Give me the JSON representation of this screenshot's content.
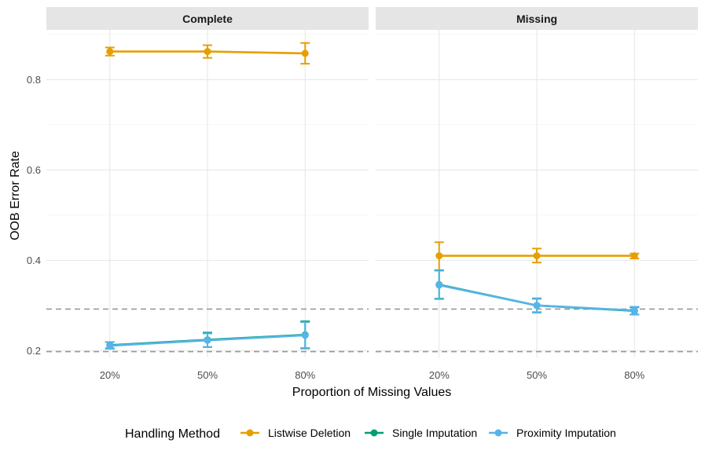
{
  "chart_data": {
    "type": "line",
    "ylabel": "OOB Error Rate",
    "xlabel": "Proportion of Missing Values",
    "categories": [
      "20%",
      "50%",
      "80%"
    ],
    "ylim": [
      0.185,
      0.91
    ],
    "yticks": [
      0.2,
      0.4,
      0.6,
      0.8
    ],
    "ytick_labels": [
      "0.2",
      "0.4",
      "0.6",
      "0.8"
    ],
    "reference_lines": [
      0.198,
      0.292
    ],
    "grid": true,
    "legend_position": "bottom",
    "legend_title": "Handling Method",
    "panels": [
      {
        "title": "Complete",
        "series": [
          {
            "name": "Listwise Deletion",
            "color": "#E69F00",
            "values": [
              0.862,
              0.862,
              0.858
            ],
            "lower": [
              0.853,
              0.848,
              0.835
            ],
            "upper": [
              0.871,
              0.876,
              0.881
            ]
          },
          {
            "name": "Single Imputation",
            "color": "#009E73",
            "values": [
              0.212,
              0.224,
              0.235
            ],
            "lower": [
              0.205,
              0.208,
              0.205
            ],
            "upper": [
              0.219,
              0.24,
              0.265
            ]
          },
          {
            "name": "Proximity Imputation",
            "color": "#56B4E9",
            "values": [
              0.211,
              0.223,
              0.234
            ],
            "lower": [
              0.204,
              0.208,
              0.206
            ],
            "upper": [
              0.219,
              0.238,
              0.263
            ]
          }
        ]
      },
      {
        "title": "Missing",
        "series": [
          {
            "name": "Listwise Deletion",
            "color": "#E69F00",
            "values": [
              0.41,
              0.41,
              0.41
            ],
            "lower": [
              0.378,
              0.395,
              0.404
            ],
            "upper": [
              0.44,
              0.426,
              0.415
            ]
          },
          {
            "name": "Single Imputation",
            "color": "#009E73",
            "values": [
              0.346,
              0.3,
              0.288
            ],
            "lower": [
              0.315,
              0.285,
              0.28
            ],
            "upper": [
              0.378,
              0.315,
              0.296
            ]
          },
          {
            "name": "Proximity Imputation",
            "color": "#56B4E9",
            "values": [
              0.345,
              0.3,
              0.289
            ],
            "lower": [
              0.314,
              0.284,
              0.28
            ],
            "upper": [
              0.377,
              0.316,
              0.297
            ]
          }
        ]
      }
    ]
  }
}
